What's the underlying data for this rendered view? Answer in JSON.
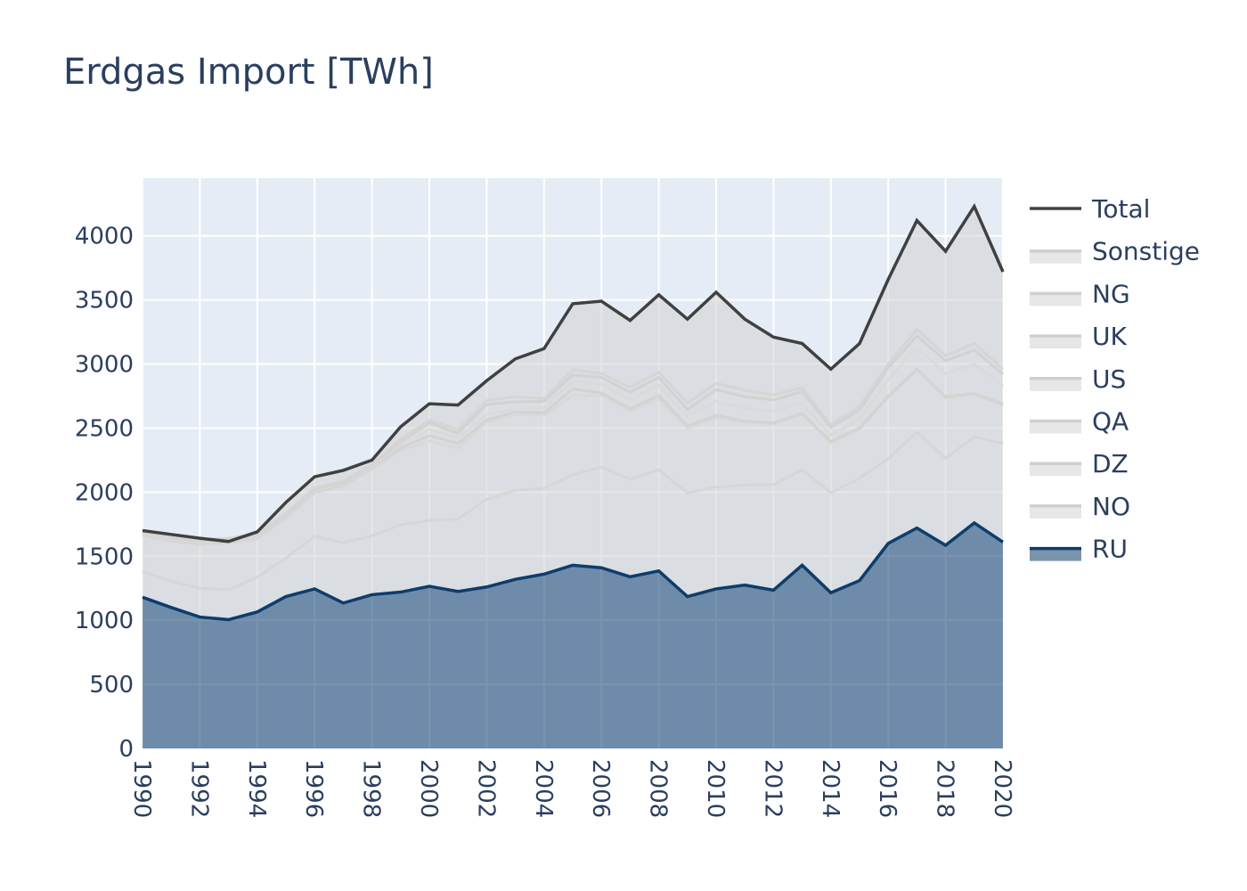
{
  "title": "Erdgas Import [TWh]",
  "chart_data": {
    "type": "area",
    "title": "Erdgas Import [TWh]",
    "xlabel": "",
    "ylabel": "",
    "x": [
      1990,
      1991,
      1992,
      1993,
      1994,
      1995,
      1996,
      1997,
      1998,
      1999,
      2000,
      2001,
      2002,
      2003,
      2004,
      2005,
      2006,
      2007,
      2008,
      2009,
      2010,
      2011,
      2012,
      2013,
      2014,
      2015,
      2016,
      2017,
      2018,
      2019,
      2020
    ],
    "xlim": [
      1990,
      2020
    ],
    "ylim": [
      0,
      4450
    ],
    "x_ticks": [
      1990,
      1992,
      1994,
      1996,
      1998,
      2000,
      2002,
      2004,
      2006,
      2008,
      2010,
      2012,
      2014,
      2016,
      2018,
      2020
    ],
    "y_ticks": [
      0,
      500,
      1000,
      1500,
      2000,
      2500,
      3000,
      3500,
      4000
    ],
    "grid": true,
    "legend_position": "right",
    "total": {
      "name": "Total",
      "color": "#404040",
      "values": [
        1700,
        1670,
        1640,
        1615,
        1690,
        1920,
        2120,
        2170,
        2250,
        2510,
        2690,
        2680,
        2870,
        3040,
        3120,
        3470,
        3490,
        3340,
        3540,
        3350,
        3560,
        3350,
        3210,
        3160,
        2960,
        3160,
        3660,
        4120,
        3880,
        4230,
        3720
      ]
    },
    "series": [
      {
        "name": "RU",
        "color": "#0d3d6b",
        "fill": "rgba(13,61,107,0.55)",
        "values": [
          1180,
          1100,
          1025,
          1005,
          1065,
          1185,
          1245,
          1135,
          1200,
          1220,
          1265,
          1225,
          1260,
          1320,
          1360,
          1430,
          1410,
          1340,
          1385,
          1185,
          1245,
          1275,
          1235,
          1430,
          1215,
          1310,
          1600,
          1720,
          1585,
          1760,
          1610
        ]
      },
      {
        "name": "NO",
        "color": "#d6d6d6",
        "values": [
          200,
          205,
          225,
          235,
          270,
          300,
          410,
          470,
          460,
          525,
          515,
          565,
          685,
          695,
          670,
          705,
          785,
          760,
          790,
          810,
          795,
          780,
          825,
          745,
          780,
          800,
          660,
          750,
          680,
          670,
          770
        ]
      },
      {
        "name": "DZ",
        "color": "#d9d9d9",
        "values": [
          280,
          310,
          340,
          360,
          300,
          310,
          340,
          440,
          520,
          580,
          620,
          550,
          600,
          590,
          570,
          620,
          560,
          530,
          550,
          500,
          540,
          490,
          470,
          430,
          390,
          380,
          480,
          480,
          470,
          330,
          300
        ]
      },
      {
        "name": "QA",
        "color": "#d3d3d3",
        "values": [
          10,
          10,
          10,
          10,
          10,
          10,
          10,
          10,
          10,
          20,
          40,
          40,
          20,
          20,
          20,
          50,
          20,
          20,
          30,
          20,
          20,
          10,
          10,
          10,
          10,
          10,
          10,
          10,
          10,
          10,
          10
        ]
      },
      {
        "name": "US",
        "color": "#dadada",
        "values": [
          10,
          10,
          10,
          10,
          10,
          10,
          10,
          10,
          10,
          30,
          50,
          40,
          40,
          20,
          40,
          60,
          70,
          70,
          80,
          80,
          110,
          100,
          90,
          80,
          50,
          70,
          130,
          170,
          180,
          230,
          140
        ]
      },
      {
        "name": "UK",
        "color": "#d2d2d2",
        "values": [
          10,
          10,
          10,
          10,
          10,
          10,
          10,
          10,
          10,
          20,
          50,
          40,
          80,
          60,
          50,
          50,
          50,
          60,
          60,
          50,
          90,
          90,
          90,
          90,
          60,
          70,
          90,
          90,
          100,
          110,
          90
        ]
      },
      {
        "name": "NG",
        "color": "#d5d5d5",
        "values": [
          10,
          10,
          10,
          10,
          10,
          10,
          10,
          10,
          10,
          20,
          20,
          30,
          30,
          40,
          20,
          40,
          30,
          40,
          40,
          50,
          50,
          50,
          40,
          30,
          20,
          30,
          30,
          50,
          40,
          50,
          40
        ]
      },
      {
        "name": "Sonstige",
        "color": "#dedede",
        "values": [
          0,
          0,
          0,
          0,
          0,
          0,
          0,
          0,
          0,
          0,
          0,
          0,
          0,
          0,
          0,
          0,
          0,
          0,
          0,
          0,
          0,
          0,
          0,
          0,
          0,
          0,
          0,
          0,
          0,
          0,
          0
        ]
      }
    ],
    "legend": [
      "Total",
      "Sonstige",
      "NG",
      "UK",
      "US",
      "QA",
      "DZ",
      "NO",
      "RU"
    ]
  }
}
